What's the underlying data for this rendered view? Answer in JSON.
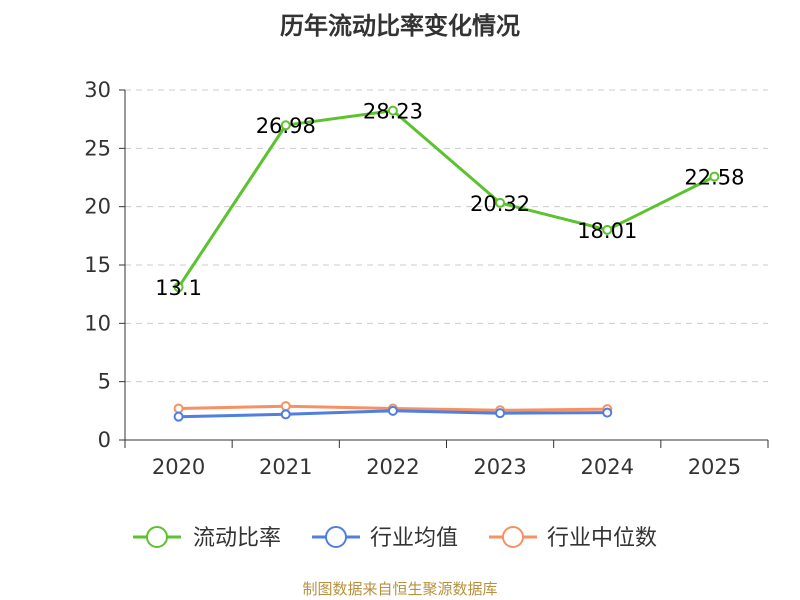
{
  "chart_data": {
    "type": "line",
    "title": "历年流动比率变化情况",
    "categories": [
      "2020",
      "2021",
      "2022",
      "2023",
      "2024",
      "2025"
    ],
    "ylim": [
      0,
      30
    ],
    "yticks": [
      0,
      5,
      10,
      15,
      20,
      25,
      30
    ],
    "grid": true,
    "legend_position": "bottom",
    "series": [
      {
        "name": "流动比率",
        "color": "#5cc22e",
        "values": [
          13.1,
          26.98,
          28.23,
          20.32,
          18.01,
          22.58
        ],
        "show_labels": true
      },
      {
        "name": "行业均值",
        "color": "#4f7fe0",
        "values": [
          2.0,
          2.2,
          2.5,
          2.3,
          2.35,
          null
        ],
        "show_labels": false
      },
      {
        "name": "行业中位数",
        "color": "#f59163",
        "values": [
          2.7,
          2.9,
          2.7,
          2.55,
          2.65,
          null
        ],
        "show_labels": false
      }
    ],
    "source": "制图数据来自恒生聚源数据库"
  }
}
